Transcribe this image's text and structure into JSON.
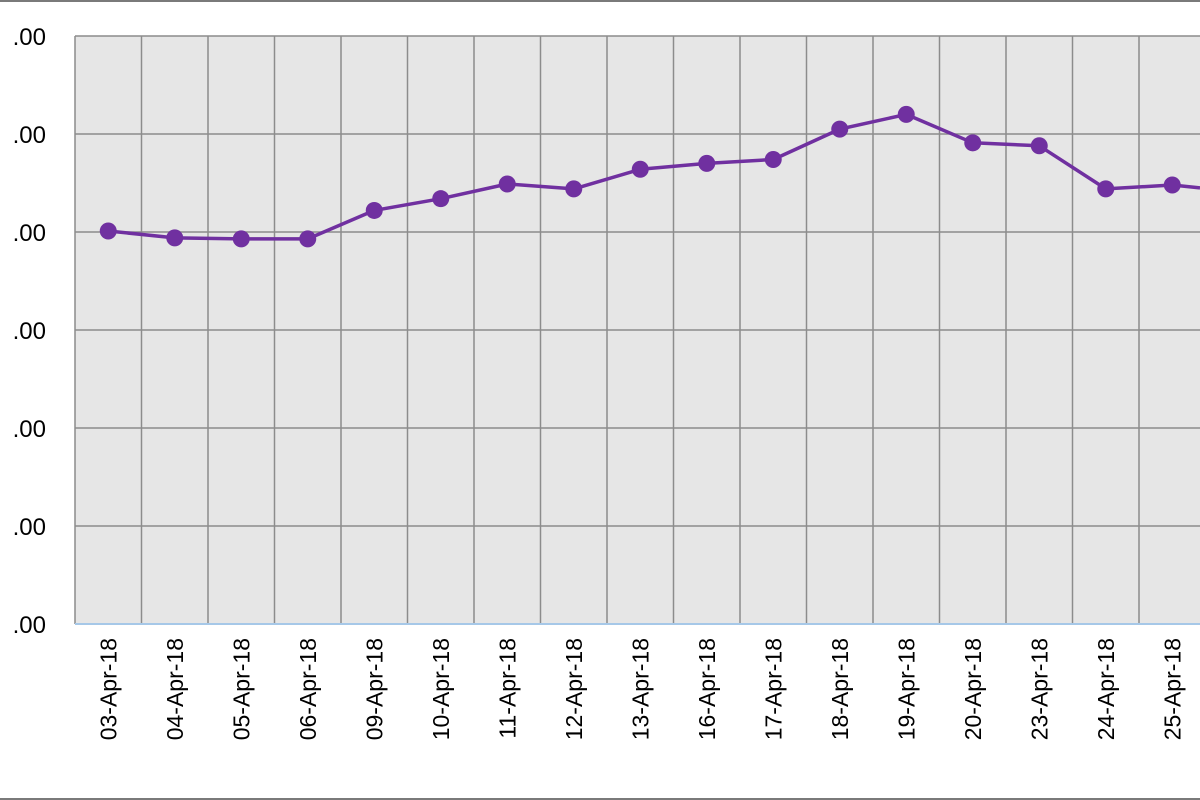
{
  "chart_data": {
    "type": "line",
    "title": "",
    "xlabel": "",
    "ylabel": "",
    "categories": [
      "03-Apr-18",
      "04-Apr-18",
      "05-Apr-18",
      "06-Apr-18",
      "09-Apr-18",
      "10-Apr-18",
      "11-Apr-18",
      "12-Apr-18",
      "13-Apr-18",
      "16-Apr-18",
      "17-Apr-18",
      "18-Apr-18",
      "19-Apr-18",
      "20-Apr-18",
      "23-Apr-18",
      "24-Apr-18",
      "25-Apr-18"
    ],
    "y_tick_labels": [
      ".00",
      ".00",
      ".00",
      ".00",
      ".00",
      ".00",
      ".00"
    ],
    "series": [
      {
        "values": [
          4.01,
          3.94,
          3.93,
          3.93,
          4.22,
          4.34,
          4.49,
          4.44,
          4.64,
          4.7,
          4.74,
          5.05,
          5.2,
          4.91,
          4.88,
          4.44,
          4.48
        ]
      }
    ],
    "ylim": [
      0,
      6
    ],
    "grid": true,
    "colors": {
      "line": "#7030a0",
      "plot_bg": "#e6e6e6",
      "grid": "#8c8c8c",
      "x_axis": "#a6c8e8"
    }
  }
}
